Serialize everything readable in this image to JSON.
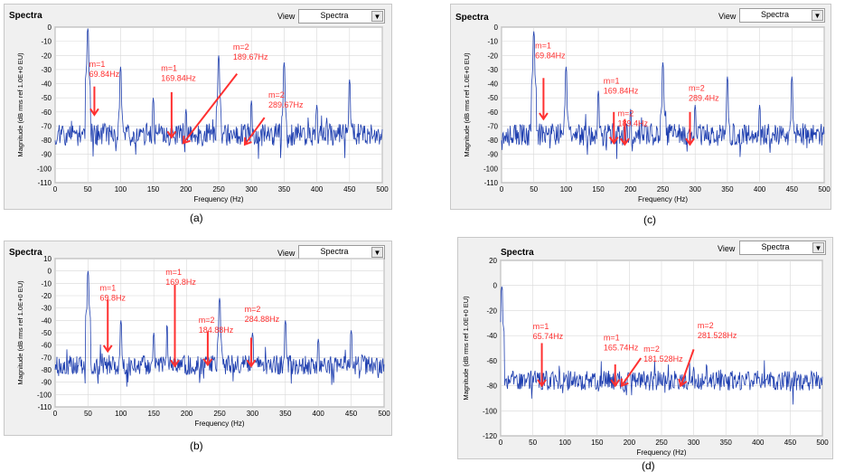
{
  "panels": [
    {
      "caption": "(a)",
      "title": "Spectra",
      "view_label": "View",
      "view_value": "Spectra",
      "ylabel": "Magnitude (dB rms ref 1.0E+0 EU)",
      "xlabel": "Frequency (Hz)",
      "xticks": [
        0,
        50,
        100,
        150,
        200,
        250,
        300,
        350,
        400,
        450,
        500
      ],
      "yticks": [
        0,
        -10,
        -20,
        -30,
        -40,
        -50,
        -60,
        -70,
        -80,
        -90,
        -100,
        -110
      ],
      "xlim": [
        0,
        500
      ],
      "ylim": [
        -110,
        0
      ],
      "peaks": [
        [
          50,
          0
        ],
        [
          100,
          -28
        ],
        [
          150,
          -50
        ],
        [
          200,
          -58
        ],
        [
          250,
          -20
        ],
        [
          300,
          -52
        ],
        [
          350,
          -25
        ],
        [
          400,
          -55
        ],
        [
          450,
          -37
        ]
      ],
      "seed": 11,
      "annotations": [
        {
          "text": "m=1",
          "text2": "69.84Hz",
          "tx": 52,
          "ty": -28,
          "ax1": 60,
          "ay1": -42,
          "ax2": 60,
          "ay2": -62
        },
        {
          "text": "m=1",
          "text2": "169.84Hz",
          "tx": 162,
          "ty": -31,
          "ax1": 178,
          "ay1": -46,
          "ax2": 178,
          "ay2": -78
        },
        {
          "text": "m=2",
          "text2": "189.67Hz",
          "tx": 272,
          "ty": -16,
          "ax1": 278,
          "ay1": -33,
          "ax2": 196,
          "ay2": -82
        },
        {
          "text": "m=2",
          "text2": "289.67Hz",
          "tx": 326,
          "ty": -50,
          "ax1": 320,
          "ay1": -64,
          "ax2": 290,
          "ay2": -83
        }
      ]
    },
    {
      "caption": "(b)",
      "title": "Spectra",
      "view_label": "View",
      "view_value": "Spectra",
      "ylabel": "Magnitude (dB rms ref 1.0E+0 EU)",
      "xlabel": "Frequency (Hz)",
      "xticks": [
        0,
        50,
        100,
        150,
        200,
        250,
        300,
        350,
        400,
        450,
        500
      ],
      "yticks": [
        10,
        0,
        -10,
        -20,
        -30,
        -40,
        -50,
        -60,
        -70,
        -80,
        -90,
        -100,
        -110
      ],
      "xlim": [
        0,
        500
      ],
      "ylim": [
        -110,
        10
      ],
      "peaks": [
        [
          50,
          0
        ],
        [
          100,
          -40
        ],
        [
          150,
          -50
        ],
        [
          170,
          -43
        ],
        [
          250,
          -22
        ],
        [
          300,
          -50
        ],
        [
          350,
          -40
        ],
        [
          400,
          -55
        ],
        [
          450,
          -48
        ]
      ],
      "seed": 23,
      "annotations": [
        {
          "text": "m=1",
          "text2": "69.8Hz",
          "tx": 68,
          "ty": -16,
          "ax1": 80,
          "ay1": -23,
          "ax2": 80,
          "ay2": -65
        },
        {
          "text": "m=1",
          "text2": "169.8Hz",
          "tx": 168,
          "ty": -3,
          "ax1": 182,
          "ay1": -11,
          "ax2": 182,
          "ay2": -77
        },
        {
          "text": "m=2",
          "text2": "184.88Hz",
          "tx": 218,
          "ty": -42,
          "ax1": 232,
          "ay1": -49,
          "ax2": 232,
          "ay2": -76
        },
        {
          "text": "m=2",
          "text2": "284.88Hz",
          "tx": 288,
          "ty": -33,
          "ax1": 298,
          "ay1": -54,
          "ax2": 298,
          "ay2": -77
        }
      ]
    },
    {
      "caption": "(c)",
      "title": "Spectra",
      "view_label": "View",
      "view_value": "Spectra",
      "ylabel": "Magnitude (dB rms ref 1.0E+0 EU)",
      "xlabel": "Frequency (Hz)",
      "xticks": [
        0,
        50,
        100,
        150,
        200,
        250,
        300,
        350,
        400,
        450,
        500
      ],
      "yticks": [
        0,
        -10,
        -20,
        -30,
        -40,
        -50,
        -60,
        -70,
        -80,
        -90,
        -100,
        -110
      ],
      "xlim": [
        0,
        500
      ],
      "ylim": [
        -110,
        0
      ],
      "peaks": [
        [
          50,
          -3
        ],
        [
          100,
          -28
        ],
        [
          150,
          -45
        ],
        [
          200,
          -58
        ],
        [
          250,
          -25
        ],
        [
          300,
          -55
        ],
        [
          350,
          -35
        ],
        [
          400,
          -55
        ],
        [
          450,
          -35
        ]
      ],
      "seed": 37,
      "annotations": [
        {
          "text": "m=1",
          "text2": "69.84Hz",
          "tx": 52,
          "ty": -15,
          "ax1": 65,
          "ay1": -36,
          "ax2": 65,
          "ay2": -65
        },
        {
          "text": "m=1",
          "text2": "169.84Hz",
          "tx": 158,
          "ty": -40,
          "ax1": 174,
          "ay1": -60,
          "ax2": 174,
          "ay2": -82
        },
        {
          "text": "m=2",
          "text2": "189.4Hz",
          "tx": 180,
          "ty": -63,
          "ax1": 191,
          "ay1": -65,
          "ax2": 191,
          "ay2": -83
        },
        {
          "text": "m=2",
          "text2": "289.4Hz",
          "tx": 290,
          "ty": -45,
          "ax1": 292,
          "ay1": -60,
          "ax2": 292,
          "ay2": -83
        }
      ]
    },
    {
      "caption": "(d)",
      "title": "Spectra",
      "view_label": "View",
      "view_value": "Spectra",
      "ylabel": "Magnitude (dB rms ref 1.0E+0 EU)",
      "xlabel": "Frequency (Hz)",
      "xticks": [
        0,
        50,
        100,
        150,
        200,
        250,
        300,
        350,
        400,
        450,
        500
      ],
      "yticks": [
        20,
        0,
        -20,
        -40,
        -60,
        -80,
        -100,
        -120
      ],
      "xlim": [
        0,
        500
      ],
      "ylim": [
        -120,
        20
      ],
      "peaks": [
        [
          2,
          0
        ],
        [
          300,
          -65
        ],
        [
          320,
          -62
        ]
      ],
      "seed": 53,
      "annotations": [
        {
          "text": "m=1",
          "text2": "65.74Hz",
          "tx": 50,
          "ty": -35,
          "ax1": 64,
          "ay1": -46,
          "ax2": 64,
          "ay2": -80
        },
        {
          "text": "m=1",
          "text2": "165.74Hz",
          "tx": 160,
          "ty": -44,
          "ax1": 178,
          "ay1": -63,
          "ax2": 178,
          "ay2": -80
        },
        {
          "text": "m=2",
          "text2": "181.528Hz",
          "tx": 222,
          "ty": -53,
          "ax1": 218,
          "ay1": -58,
          "ax2": 188,
          "ay2": -80
        },
        {
          "text": "m=2",
          "text2": "281.528Hz",
          "tx": 306,
          "ty": -34,
          "ax1": 300,
          "ay1": -51,
          "ax2": 280,
          "ay2": -80
        }
      ]
    }
  ],
  "colors": {
    "line": "#2040b0",
    "annotation": "#ff3030",
    "plot_bg": "#ffffff",
    "grid": "#d8d8d8"
  }
}
